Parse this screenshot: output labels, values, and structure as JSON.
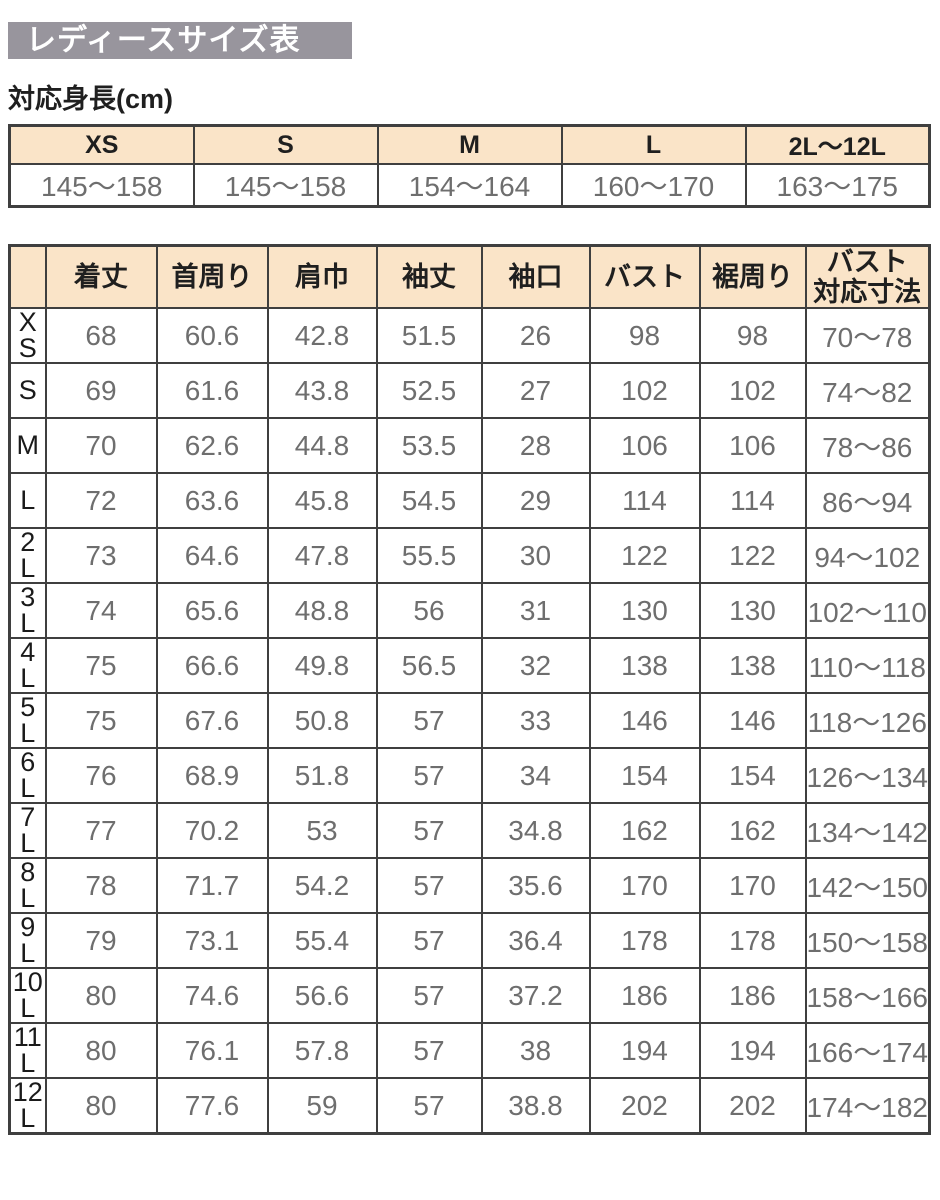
{
  "header": {
    "title": "レディースサイズ表",
    "height_label": "対応身長(cm)"
  },
  "height_table": {
    "columns": [
      "XS",
      "S",
      "M",
      "L",
      "2L〜12L"
    ],
    "values": [
      "145〜158",
      "145〜158",
      "154〜164",
      "160〜170",
      "163〜175"
    ]
  },
  "size_table": {
    "columns": [
      "着丈",
      "首周り",
      "肩巾",
      "袖丈",
      "袖口",
      "バスト",
      "裾周り",
      "バスト\n対応寸法"
    ],
    "rows": [
      {
        "label": "X\nS",
        "values": [
          "68",
          "60.6",
          "42.8",
          "51.5",
          "26",
          "98",
          "98",
          "70〜78"
        ]
      },
      {
        "label": "S",
        "values": [
          "69",
          "61.6",
          "43.8",
          "52.5",
          "27",
          "102",
          "102",
          "74〜82"
        ]
      },
      {
        "label": "M",
        "values": [
          "70",
          "62.6",
          "44.8",
          "53.5",
          "28",
          "106",
          "106",
          "78〜86"
        ]
      },
      {
        "label": "L",
        "values": [
          "72",
          "63.6",
          "45.8",
          "54.5",
          "29",
          "114",
          "114",
          "86〜94"
        ]
      },
      {
        "label": "2\nL",
        "values": [
          "73",
          "64.6",
          "47.8",
          "55.5",
          "30",
          "122",
          "122",
          "94〜102"
        ]
      },
      {
        "label": "3\nL",
        "values": [
          "74",
          "65.6",
          "48.8",
          "56",
          "31",
          "130",
          "130",
          "102〜110"
        ]
      },
      {
        "label": "4\nL",
        "values": [
          "75",
          "66.6",
          "49.8",
          "56.5",
          "32",
          "138",
          "138",
          "110〜118"
        ]
      },
      {
        "label": "5\nL",
        "values": [
          "75",
          "67.6",
          "50.8",
          "57",
          "33",
          "146",
          "146",
          "118〜126"
        ]
      },
      {
        "label": "6\nL",
        "values": [
          "76",
          "68.9",
          "51.8",
          "57",
          "34",
          "154",
          "154",
          "126〜134"
        ]
      },
      {
        "label": "7\nL",
        "values": [
          "77",
          "70.2",
          "53",
          "57",
          "34.8",
          "162",
          "162",
          "134〜142"
        ]
      },
      {
        "label": "8\nL",
        "values": [
          "78",
          "71.7",
          "54.2",
          "57",
          "35.6",
          "170",
          "170",
          "142〜150"
        ]
      },
      {
        "label": "9\nL",
        "values": [
          "79",
          "73.1",
          "55.4",
          "57",
          "36.4",
          "178",
          "178",
          "150〜158"
        ]
      },
      {
        "label": "10\nL",
        "values": [
          "80",
          "74.6",
          "56.6",
          "57",
          "37.2",
          "186",
          "186",
          "158〜166"
        ]
      },
      {
        "label": "11\nL",
        "values": [
          "80",
          "76.1",
          "57.8",
          "57",
          "38",
          "194",
          "194",
          "166〜174"
        ]
      },
      {
        "label": "12\nL",
        "values": [
          "80",
          "77.6",
          "59",
          "57",
          "38.8",
          "202",
          "202",
          "174〜182"
        ]
      }
    ]
  },
  "colors": {
    "title_bg": "#98959d",
    "header_bg": "#fae4c8",
    "border": "#3f3f3f",
    "value_text": "#6e6e6e",
    "header_text": "#1f1f1f"
  }
}
